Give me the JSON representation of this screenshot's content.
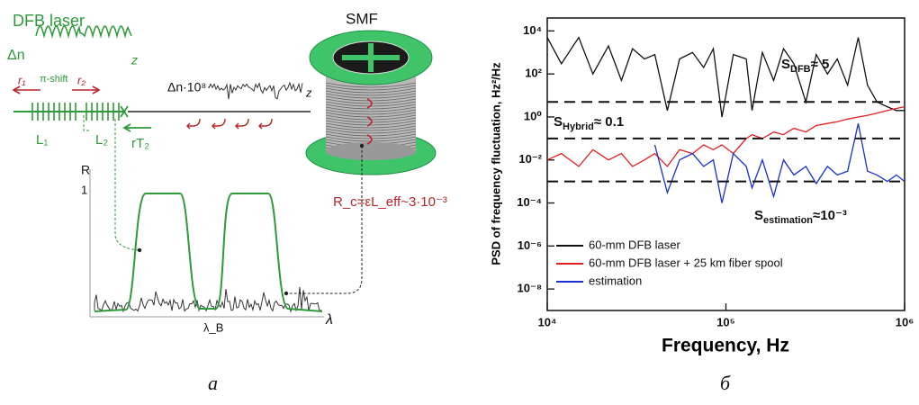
{
  "diagram": {
    "laser_title": "DFB laser",
    "index_label": "Δn",
    "z_label": "z",
    "r1": "r₁",
    "pi_shift": "π-shift",
    "r2": "r₂",
    "L1": "L₁",
    "L2": "L₂",
    "rT2": "rT₂",
    "fiber_index_label": "Δn·10⁸",
    "fiber_z_label": "z",
    "spool_label": "SMF",
    "R_axis": "R",
    "R_one": "1",
    "lambda_B": "λ_B",
    "lambda": "λ",
    "Rc_formula": "R_c=εL_eff~3·10⁻³"
  },
  "chart_data": {
    "type": "line",
    "xlabel": "Frequency, Hz",
    "ylabel": "PSD of frequency fluctuation, Hz²/Hz",
    "log_x": true,
    "log_y": true,
    "xlim": [
      10000,
      1000000
    ],
    "ylim": [
      1e-09,
      40000
    ],
    "xticks": [
      {
        "value": 10000,
        "label": "10⁴"
      },
      {
        "value": 100000,
        "label": "10⁵"
      },
      {
        "value": 1000000,
        "label": "10⁶"
      }
    ],
    "yticks": [
      {
        "value": 1e-08,
        "label": "10⁻⁸"
      },
      {
        "value": 1e-06,
        "label": "10⁻⁶"
      },
      {
        "value": 0.0001,
        "label": "10⁻⁴"
      },
      {
        "value": 0.01,
        "label": "10⁻²"
      },
      {
        "value": 1,
        "label": "10⁰"
      },
      {
        "value": 100,
        "label": "10²"
      },
      {
        "value": 10000,
        "label": "10⁴"
      }
    ],
    "legend": "lower left",
    "x": [
      10000,
      12000,
      15000,
      18000,
      22000,
      26000,
      30000,
      35000,
      40000,
      47000,
      55000,
      65000,
      75000,
      85000,
      95000,
      110000,
      130000,
      140000,
      160000,
      185000,
      210000,
      240000,
      280000,
      320000,
      370000,
      420000,
      480000,
      550000,
      620000,
      700000,
      800000,
      900000,
      1000000
    ],
    "series": [
      {
        "name": "60-mm DFB laser",
        "color": "#111111",
        "values": [
          5000,
          300,
          5000,
          100,
          2000,
          50,
          1500,
          500,
          800,
          2,
          500,
          1000,
          200,
          1500,
          1,
          800,
          500,
          2,
          1000,
          50,
          1500,
          300,
          5,
          800,
          100,
          500,
          30,
          5000,
          30,
          5,
          3,
          2,
          2
        ]
      },
      {
        "name": "60-mm DFB laser + 25 km fiber spool",
        "color": "#e02020",
        "values": [
          0.01,
          0.02,
          0.005,
          0.03,
          0.01,
          0.02,
          0.005,
          0.01,
          0.02,
          0.005,
          0.03,
          0.02,
          0.05,
          0.03,
          0.05,
          0.02,
          0.1,
          0.15,
          0.1,
          0.2,
          0.15,
          0.3,
          0.2,
          0.4,
          0.5,
          0.6,
          0.8,
          1,
          1.2,
          1.5,
          2,
          2.5,
          3
        ]
      },
      {
        "name": "estimation",
        "color": "#1a2fd0",
        "values": [
          null,
          null,
          null,
          null,
          null,
          null,
          null,
          null,
          0.05,
          0.0003,
          0.01,
          0.02,
          0.005,
          0.01,
          0.0001,
          0.02,
          0.005,
          0.0005,
          0.01,
          0.0002,
          0.01,
          0.002,
          0.005,
          0.0008,
          0.005,
          0.002,
          0.003,
          0.5,
          0.003,
          0.002,
          0.001,
          0.002,
          0.001
        ]
      }
    ],
    "reference_lines": [
      5,
      0.1,
      0.001
    ],
    "annotations": [
      {
        "symbol": "S",
        "subscript": "DFB",
        "text": "≈ 5"
      },
      {
        "symbol": "S",
        "subscript": "Hybrid",
        "text": "≈ 0.1"
      },
      {
        "symbol": "S",
        "subscript": "estimation",
        "text": "≈10⁻³"
      }
    ],
    "panel_labels": [
      "а",
      "б"
    ]
  }
}
